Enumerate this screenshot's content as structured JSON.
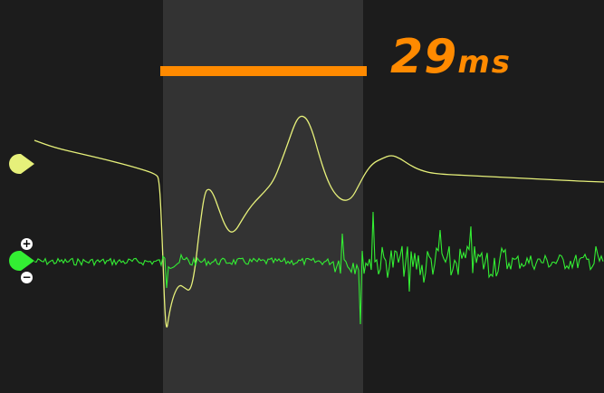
{
  "duration": {
    "value": "29",
    "unit": "ms"
  },
  "colors": {
    "background": "#1c1c1c",
    "highlight": "#333333",
    "accent": "#ff8a00",
    "trace_yellow": "#e6f07a",
    "trace_green": "#2ee62e"
  },
  "channels": [
    {
      "name": "yellow-channel",
      "color": "#e6f07a",
      "icon": "drop-handle-icon"
    },
    {
      "name": "green-channel",
      "color": "#33ee33",
      "icon": "drop-handle-icon"
    }
  ],
  "zoom": {
    "in_label": "+",
    "out_label": "−"
  }
}
